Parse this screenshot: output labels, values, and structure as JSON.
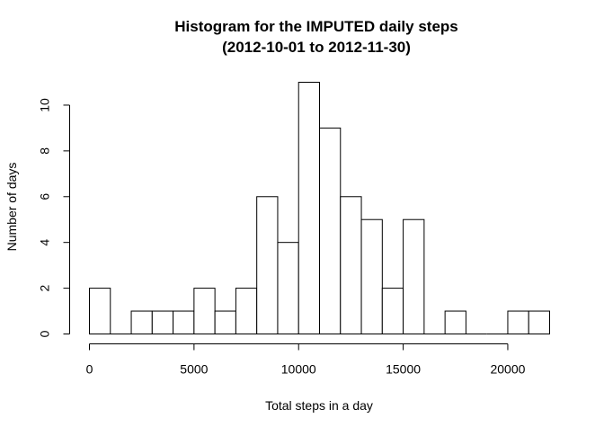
{
  "chart_data": {
    "type": "bar",
    "title_line1": "Histogram for the IMPUTED daily steps",
    "title_line2": "(2012-10-01 to 2012-11-30)",
    "xlabel": "Total steps in a day",
    "ylabel": "Number of days",
    "bin_width": 1000,
    "bin_starts": [
      0,
      1000,
      2000,
      3000,
      4000,
      5000,
      6000,
      7000,
      8000,
      9000,
      10000,
      11000,
      12000,
      13000,
      14000,
      15000,
      16000,
      17000,
      18000,
      19000,
      20000,
      21000
    ],
    "values": [
      2,
      0,
      1,
      1,
      1,
      2,
      1,
      2,
      6,
      4,
      11,
      9,
      6,
      5,
      2,
      5,
      0,
      1,
      0,
      0,
      1,
      1
    ],
    "xlim": [
      0,
      22000
    ],
    "ylim": [
      0,
      11
    ],
    "x_ticks": [
      0,
      5000,
      10000,
      15000,
      20000
    ],
    "x_tick_labels": [
      "0",
      "5000",
      "10000",
      "15000",
      "20000"
    ],
    "y_ticks": [
      0,
      2,
      4,
      6,
      8,
      10
    ],
    "y_tick_labels": [
      "0",
      "2",
      "4",
      "6",
      "8",
      "10"
    ],
    "bar_fill": "#ffffff",
    "bar_stroke": "#000000",
    "grid": false,
    "legend": "none"
  }
}
